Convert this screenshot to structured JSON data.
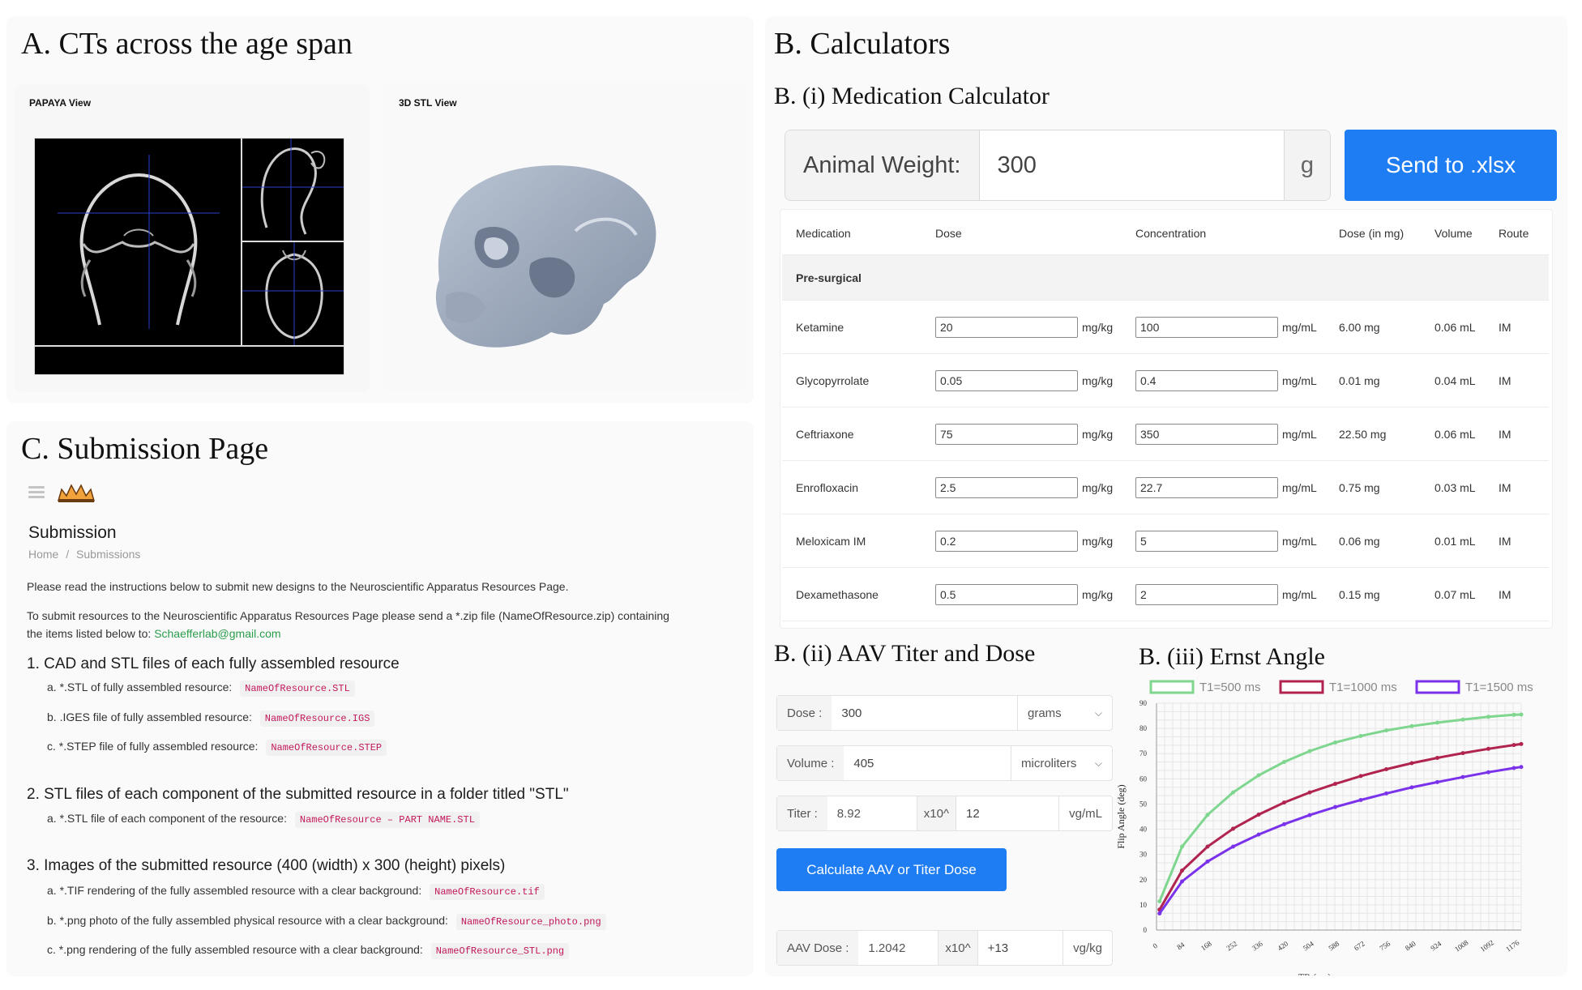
{
  "panel_a": {
    "title": "A. CTs across the age span",
    "papaya_label": "PAPAYA View",
    "stl_label": "3D STL View"
  },
  "panel_b": {
    "title": "B. Calculators",
    "med_calc": {
      "title": "B. (i) Medication Calculator",
      "weight_label": "Animal Weight:",
      "weight_value": "300",
      "weight_unit": "g",
      "send_button": "Send to .xlsx",
      "headers": [
        "Medication",
        "Dose",
        "Concentration",
        "Dose (in mg)",
        "Volume",
        "Route"
      ],
      "group": "Pre-surgical",
      "rows": [
        {
          "name": "Ketamine",
          "dose": "20",
          "dose_unit": "mg/kg",
          "conc": "100",
          "conc_unit": "mg/mL",
          "mg": "6.00 mg",
          "vol": "0.06 mL",
          "route": "IM"
        },
        {
          "name": "Glycopyrrolate",
          "dose": "0.05",
          "dose_unit": "mg/kg",
          "conc": "0.4",
          "conc_unit": "mg/mL",
          "mg": "0.01 mg",
          "vol": "0.04 mL",
          "route": "IM"
        },
        {
          "name": "Ceftriaxone",
          "dose": "75",
          "dose_unit": "mg/kg",
          "conc": "350",
          "conc_unit": "mg/mL",
          "mg": "22.50 mg",
          "vol": "0.06 mL",
          "route": "IM"
        },
        {
          "name": "Enrofloxacin",
          "dose": "2.5",
          "dose_unit": "mg/kg",
          "conc": "22.7",
          "conc_unit": "mg/mL",
          "mg": "0.75 mg",
          "vol": "0.03 mL",
          "route": "IM"
        },
        {
          "name": "Meloxicam IM",
          "dose": "0.2",
          "dose_unit": "mg/kg",
          "conc": "5",
          "conc_unit": "mg/mL",
          "mg": "0.06 mg",
          "vol": "0.01 mL",
          "route": "IM"
        },
        {
          "name": "Dexamethasone",
          "dose": "0.5",
          "dose_unit": "mg/kg",
          "conc": "2",
          "conc_unit": "mg/mL",
          "mg": "0.15 mg",
          "vol": "0.07 mL",
          "route": "IM"
        }
      ]
    },
    "aav": {
      "title": "B. (ii) AAV Titer and Dose",
      "dose_label": "Dose :",
      "dose_value": "300",
      "dose_unit": "grams",
      "volume_label": "Volume :",
      "volume_value": "405",
      "volume_unit": "microliters",
      "titer_label": "Titer :",
      "titer_value": "8.92",
      "titer_exp_label": "x10^",
      "titer_exp": "12",
      "titer_unit": "vg/mL",
      "calc_button": "Calculate AAV or Titer Dose",
      "aav_label": "AAV Dose :",
      "aav_value": "1.2042",
      "aav_exp_label": "x10^",
      "aav_exp": "+13",
      "aav_unit": "vg/kg"
    },
    "ernst": {
      "title": "B. (iii) Ernst Angle"
    }
  },
  "panel_c": {
    "title": "C. Submission Page",
    "page_heading": "Submission",
    "breadcrumb_home": "Home",
    "breadcrumb_sep": "/",
    "breadcrumb_current": "Submissions",
    "intro": "Please read the instructions below to submit new designs to the Neuroscientific Apparatus Resources Page.",
    "intro2_line1": "To submit resources to the Neuroscientific Apparatus Resources Page please send a *.zip file (NameOfResource.zip) containing",
    "intro2_line2": "the items listed below to:",
    "email": "Schaefferlab@gmail.com",
    "sections": [
      {
        "heading": "1. CAD and STL files of each fully assembled resource",
        "items": [
          {
            "text": "a. *.STL of fully assembled resource:",
            "code": "NameOfResource.STL"
          },
          {
            "text": "b. .IGES file of fully assembled resource:",
            "code": "NameOfResource.IGS"
          },
          {
            "text": "c. *.STEP file of fully assembled resource:",
            "code": "NameOfResource.STEP"
          }
        ]
      },
      {
        "heading": "2. STL files of each component of the submitted resource in a folder titled \"STL\"",
        "items": [
          {
            "text": "a. *.STL file of each component of the resource:",
            "code": "NameOfResource – PART NAME.STL"
          }
        ]
      },
      {
        "heading": "3. Images of the submitted resource (400 (width) x 300 (height) pixels)",
        "items": [
          {
            "text": "a. *.TIF rendering of the fully assembled resource with a clear background:",
            "code": "NameOfResource.tif"
          },
          {
            "text": "b. *.png photo of the fully assembled physical resource with a clear background:",
            "code": "NameOfResource_photo.png"
          },
          {
            "text": "c. *.png rendering of the fully assembled resource with a clear background:",
            "code": "NameOfResource_STL.png"
          }
        ]
      }
    ]
  },
  "chart_data": {
    "type": "line",
    "title": "",
    "xlabel": "TR (ms)",
    "ylabel": "Flip Angle (deg)",
    "xlim": [
      0,
      1200
    ],
    "ylim": [
      0,
      90
    ],
    "x_ticks": [
      0,
      84,
      168,
      252,
      336,
      420,
      504,
      588,
      672,
      756,
      840,
      924,
      1008,
      1092,
      1176
    ],
    "y_ticks": [
      0,
      10,
      20,
      30,
      40,
      50,
      60,
      70,
      80,
      90
    ],
    "grid": true,
    "legend_position": "top",
    "series": [
      {
        "name": "T1=500 ms",
        "color": "#7fd68f",
        "t1": 500,
        "x": [
          10,
          84,
          168,
          252,
          336,
          420,
          504,
          588,
          672,
          756,
          840,
          924,
          1008,
          1092,
          1176,
          1200
        ],
        "values": [
          11.4,
          33.1,
          45.7,
          54.6,
          61.4,
          66.7,
          71.0,
          74.4,
          77.0,
          79.2,
          80.9,
          82.3,
          83.5,
          84.6,
          85.4,
          85.5
        ]
      },
      {
        "name": "T1=1000 ms",
        "color": "#b0244f",
        "t1": 1000,
        "x": [
          10,
          84,
          168,
          252,
          336,
          420,
          504,
          588,
          672,
          756,
          840,
          924,
          1008,
          1092,
          1176,
          1200
        ],
        "values": [
          8.1,
          23.6,
          33.1,
          40.2,
          45.8,
          50.6,
          54.6,
          58.0,
          61.1,
          63.8,
          66.2,
          68.3,
          70.2,
          71.9,
          73.4,
          73.8
        ]
      },
      {
        "name": "T1=1500 ms",
        "color": "#7a33ea",
        "t1": 1500,
        "x": [
          10,
          84,
          168,
          252,
          336,
          420,
          504,
          588,
          672,
          756,
          840,
          924,
          1008,
          1092,
          1176,
          1200
        ],
        "values": [
          6.6,
          19.3,
          27.2,
          33.1,
          37.9,
          42.0,
          45.6,
          48.8,
          51.6,
          54.2,
          56.6,
          58.7,
          60.7,
          62.6,
          64.3,
          64.7
        ]
      }
    ]
  }
}
